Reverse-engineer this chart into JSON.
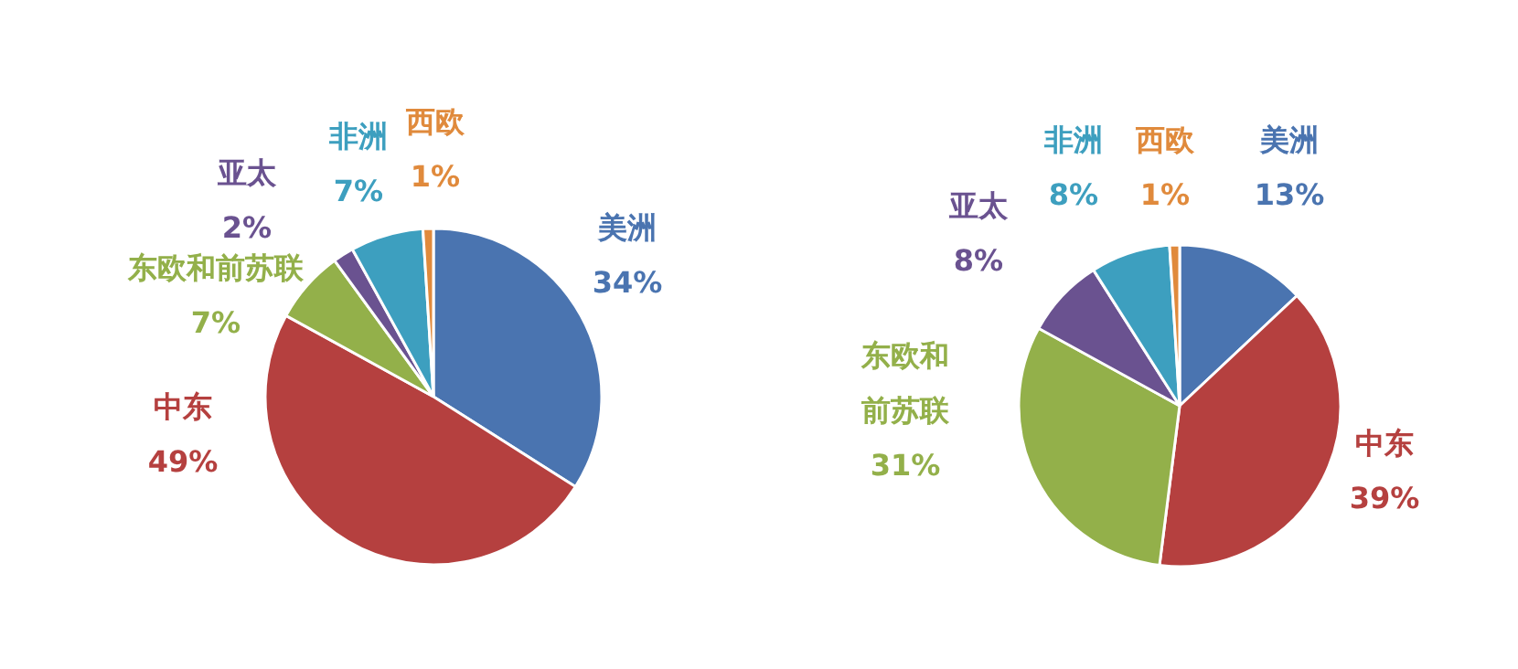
{
  "chart_data": [
    {
      "type": "pie",
      "categories": [
        "美洲",
        "中东",
        "东欧和前苏联",
        "亚太",
        "非洲",
        "西欧"
      ],
      "values": [
        34,
        49,
        7,
        2,
        7,
        1
      ],
      "value_labels": [
        "34%",
        "49%",
        "7%",
        "2%",
        "7%",
        "1%"
      ],
      "colors": [
        "#4a74b0",
        "#b5403f",
        "#93b04a",
        "#6a5290",
        "#3d9fbf",
        "#e08a3c"
      ]
    },
    {
      "type": "pie",
      "categories": [
        "美洲",
        "中东",
        "东欧和前苏联",
        "亚太",
        "非洲",
        "西欧"
      ],
      "values": [
        13,
        39,
        31,
        8,
        8,
        1
      ],
      "value_labels": [
        "13%",
        "39%",
        "31%",
        "8%",
        "8%",
        "1%"
      ],
      "colors": [
        "#4a74b0",
        "#b5403f",
        "#93b04a",
        "#6a5290",
        "#3d9fbf",
        "#e08a3c"
      ]
    }
  ]
}
